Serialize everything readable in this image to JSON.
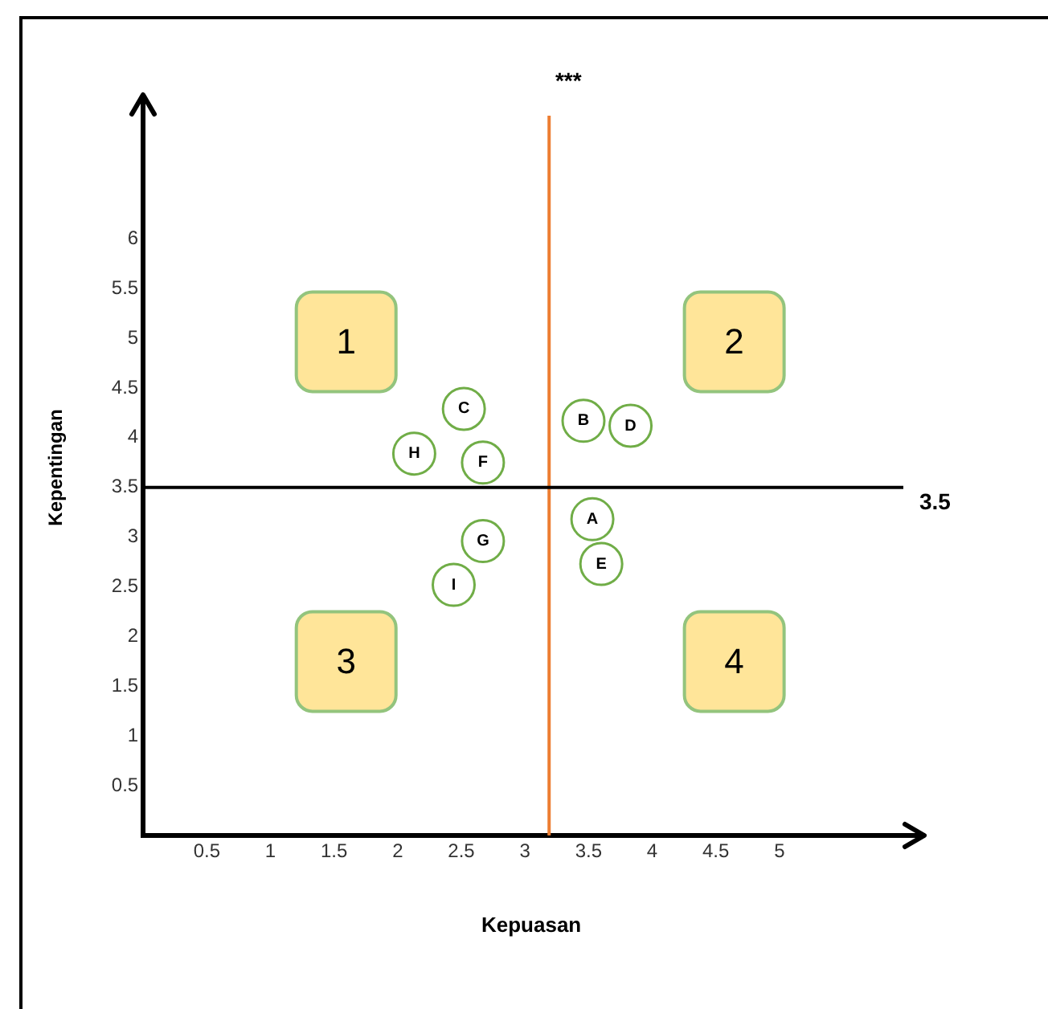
{
  "chart_data": {
    "type": "scatter",
    "xlabel": "Kepuasan",
    "ylabel": "Kepentingan",
    "x": [
      3.53,
      3.46,
      2.52,
      3.83,
      3.6,
      2.67,
      2.67,
      2.13,
      2.44
    ],
    "values": [
      3.18,
      4.17,
      4.29,
      4.12,
      2.73,
      3.75,
      2.96,
      3.84,
      2.52
    ],
    "value_labels": [
      "A",
      "B",
      "C",
      "D",
      "E",
      "F",
      "G",
      "H",
      "I"
    ],
    "color": "#70ad47",
    "marker": "circle",
    "grid": false,
    "legend": false,
    "xlim": [
      0,
      6.1
    ],
    "ylim": [
      0,
      7.4
    ],
    "xticks": [
      0.5,
      1,
      1.5,
      2,
      2.5,
      3,
      3.5,
      4,
      4.5,
      5
    ],
    "yticks": [
      0.5,
      1,
      1.5,
      2,
      2.5,
      3,
      3.5,
      4,
      4.5,
      5,
      5.5,
      6
    ],
    "ref_lines": [
      {
        "axis": "x",
        "value": 3.19,
        "label": "***",
        "color": "#ed7d31"
      },
      {
        "axis": "y",
        "value": 3.5,
        "label": "3.5",
        "color": "#000000"
      }
    ],
    "annotations": [
      "1",
      "2",
      "3",
      "4"
    ]
  }
}
